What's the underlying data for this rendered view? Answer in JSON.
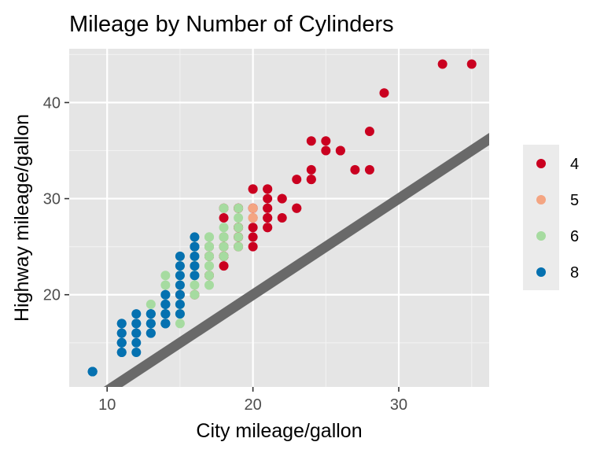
{
  "chart_data": {
    "type": "scatter",
    "title": "Mileage by Number of Cylinders",
    "xlabel": "City mileage/gallon",
    "ylabel": "Highway mileage/gallon",
    "xlim": [
      7.4,
      36.2
    ],
    "ylim": [
      10.4,
      45.6
    ],
    "x_ticks": [
      10,
      20,
      30
    ],
    "y_ticks": [
      20,
      30,
      40
    ],
    "grid": true,
    "legend_position": "right",
    "reference_line": {
      "description": "y = x",
      "color": "#696969"
    },
    "series": [
      {
        "name": "4",
        "color": "#ca0020",
        "points": [
          [
            33,
            44
          ],
          [
            35,
            44
          ],
          [
            29,
            41
          ],
          [
            28,
            37
          ],
          [
            24,
            36
          ],
          [
            25,
            36
          ],
          [
            26,
            35
          ],
          [
            26,
            35
          ],
          [
            25,
            35
          ],
          [
            28,
            33
          ],
          [
            27,
            33
          ],
          [
            24,
            33
          ],
          [
            23,
            32
          ],
          [
            24,
            32
          ],
          [
            20,
            31
          ],
          [
            21,
            31
          ],
          [
            21,
            31
          ],
          [
            24,
            32
          ],
          [
            22,
            30
          ],
          [
            20,
            31
          ],
          [
            21,
            30
          ],
          [
            22,
            30
          ],
          [
            23,
            29
          ],
          [
            21,
            29
          ],
          [
            21,
            29
          ],
          [
            20,
            29
          ],
          [
            19,
            29
          ],
          [
            20,
            29
          ],
          [
            19,
            29
          ],
          [
            18,
            29
          ],
          [
            21,
            28
          ],
          [
            22,
            28
          ],
          [
            23,
            29
          ],
          [
            21,
            28
          ],
          [
            20,
            28
          ],
          [
            18,
            28
          ],
          [
            19,
            27
          ],
          [
            21,
            27
          ],
          [
            21,
            27
          ],
          [
            20,
            27
          ],
          [
            19,
            27
          ],
          [
            19,
            26
          ],
          [
            20,
            26
          ],
          [
            19,
            26
          ],
          [
            18,
            26
          ],
          [
            18,
            25
          ],
          [
            19,
            25
          ],
          [
            17,
            25
          ],
          [
            20,
            25
          ],
          [
            18,
            24
          ],
          [
            17,
            24
          ],
          [
            18,
            24
          ],
          [
            17,
            24
          ],
          [
            16,
            23
          ],
          [
            18,
            23
          ],
          [
            17,
            22
          ],
          [
            15,
            20
          ],
          [
            15,
            20
          ],
          [
            16,
            20
          ]
        ]
      },
      {
        "name": "5",
        "color": "#f4a582",
        "points": [
          [
            20,
            29
          ],
          [
            20,
            28
          ],
          [
            20,
            28
          ],
          [
            20,
            28
          ]
        ]
      },
      {
        "name": "6",
        "color": "#a6dba0",
        "points": [
          [
            19,
            29
          ],
          [
            18,
            29
          ],
          [
            19,
            28
          ],
          [
            18,
            27
          ],
          [
            19,
            27
          ],
          [
            17,
            26
          ],
          [
            18,
            26
          ],
          [
            19,
            26
          ],
          [
            17,
            26
          ],
          [
            16,
            26
          ],
          [
            17,
            26
          ],
          [
            18,
            26
          ],
          [
            18,
            25
          ],
          [
            17,
            25
          ],
          [
            16,
            25
          ],
          [
            17,
            25
          ],
          [
            19,
            25
          ],
          [
            16,
            24
          ],
          [
            16,
            24
          ],
          [
            15,
            24
          ],
          [
            17,
            24
          ],
          [
            18,
            24
          ],
          [
            17,
            24
          ],
          [
            17,
            23
          ],
          [
            16,
            23
          ],
          [
            16,
            23
          ],
          [
            15,
            23
          ],
          [
            17,
            23
          ],
          [
            16,
            22
          ],
          [
            15,
            22
          ],
          [
            16,
            22
          ],
          [
            16,
            22
          ],
          [
            14,
            22
          ],
          [
            17,
            22
          ],
          [
            17,
            21
          ],
          [
            15,
            21
          ],
          [
            16,
            21
          ],
          [
            14,
            21
          ],
          [
            16,
            20
          ],
          [
            15,
            20
          ],
          [
            14,
            20
          ],
          [
            15,
            19
          ],
          [
            15,
            19
          ],
          [
            14,
            19
          ],
          [
            13,
            19
          ],
          [
            14,
            18
          ],
          [
            15,
            18
          ],
          [
            15,
            18
          ],
          [
            14,
            18
          ],
          [
            13,
            18
          ],
          [
            14,
            17
          ],
          [
            15,
            17
          ],
          [
            14,
            17
          ],
          [
            13,
            17
          ],
          [
            14,
            17
          ]
        ]
      },
      {
        "name": "8",
        "color": "#0571b0",
        "points": [
          [
            9,
            12
          ],
          [
            9,
            12
          ],
          [
            9,
            12
          ],
          [
            9,
            12
          ],
          [
            11,
            17
          ],
          [
            11,
            17
          ],
          [
            12,
            17
          ],
          [
            11,
            16
          ],
          [
            11,
            16
          ],
          [
            12,
            16
          ],
          [
            12,
            17
          ],
          [
            13,
            17
          ],
          [
            13,
            18
          ],
          [
            13,
            18
          ],
          [
            12,
            18
          ],
          [
            13,
            16
          ],
          [
            12,
            16
          ],
          [
            13,
            17
          ],
          [
            11,
            15
          ],
          [
            11,
            15
          ],
          [
            11,
            15
          ],
          [
            11,
            14
          ],
          [
            11,
            14
          ],
          [
            11,
            15
          ],
          [
            12,
            15
          ],
          [
            12,
            14
          ],
          [
            13,
            16
          ],
          [
            14,
            17
          ],
          [
            14,
            18
          ],
          [
            14,
            17
          ],
          [
            14,
            17
          ],
          [
            14,
            19
          ],
          [
            14,
            20
          ],
          [
            14,
            19
          ],
          [
            15,
            19
          ],
          [
            15,
            21
          ],
          [
            15,
            22
          ],
          [
            15,
            24
          ],
          [
            15,
            23
          ],
          [
            16,
            23
          ],
          [
            16,
            24
          ],
          [
            16,
            25
          ],
          [
            16,
            26
          ],
          [
            16,
            25
          ],
          [
            16,
            22
          ],
          [
            15,
            20
          ],
          [
            14,
            20
          ],
          [
            14,
            19
          ],
          [
            14,
            18
          ],
          [
            15,
            18
          ]
        ]
      }
    ]
  }
}
